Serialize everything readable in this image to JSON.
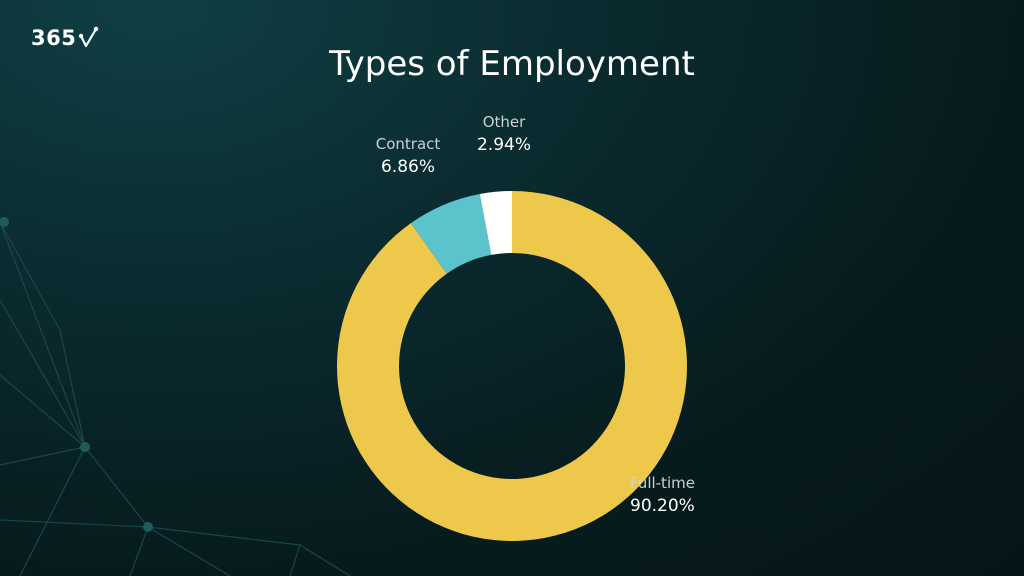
{
  "brand": {
    "logo_text": "365"
  },
  "chart_data": {
    "type": "pie",
    "title": "Types of Employment",
    "donut": true,
    "labels": [
      "Full-time",
      "Contract",
      "Other"
    ],
    "values": [
      90.2,
      6.86,
      2.94
    ],
    "value_labels": [
      "90.20%",
      "6.86%",
      "2.94%"
    ],
    "colors": [
      "#EDC84A",
      "#5BC3CB",
      "#FFFFFF"
    ],
    "start_angle": "top, clockwise"
  }
}
